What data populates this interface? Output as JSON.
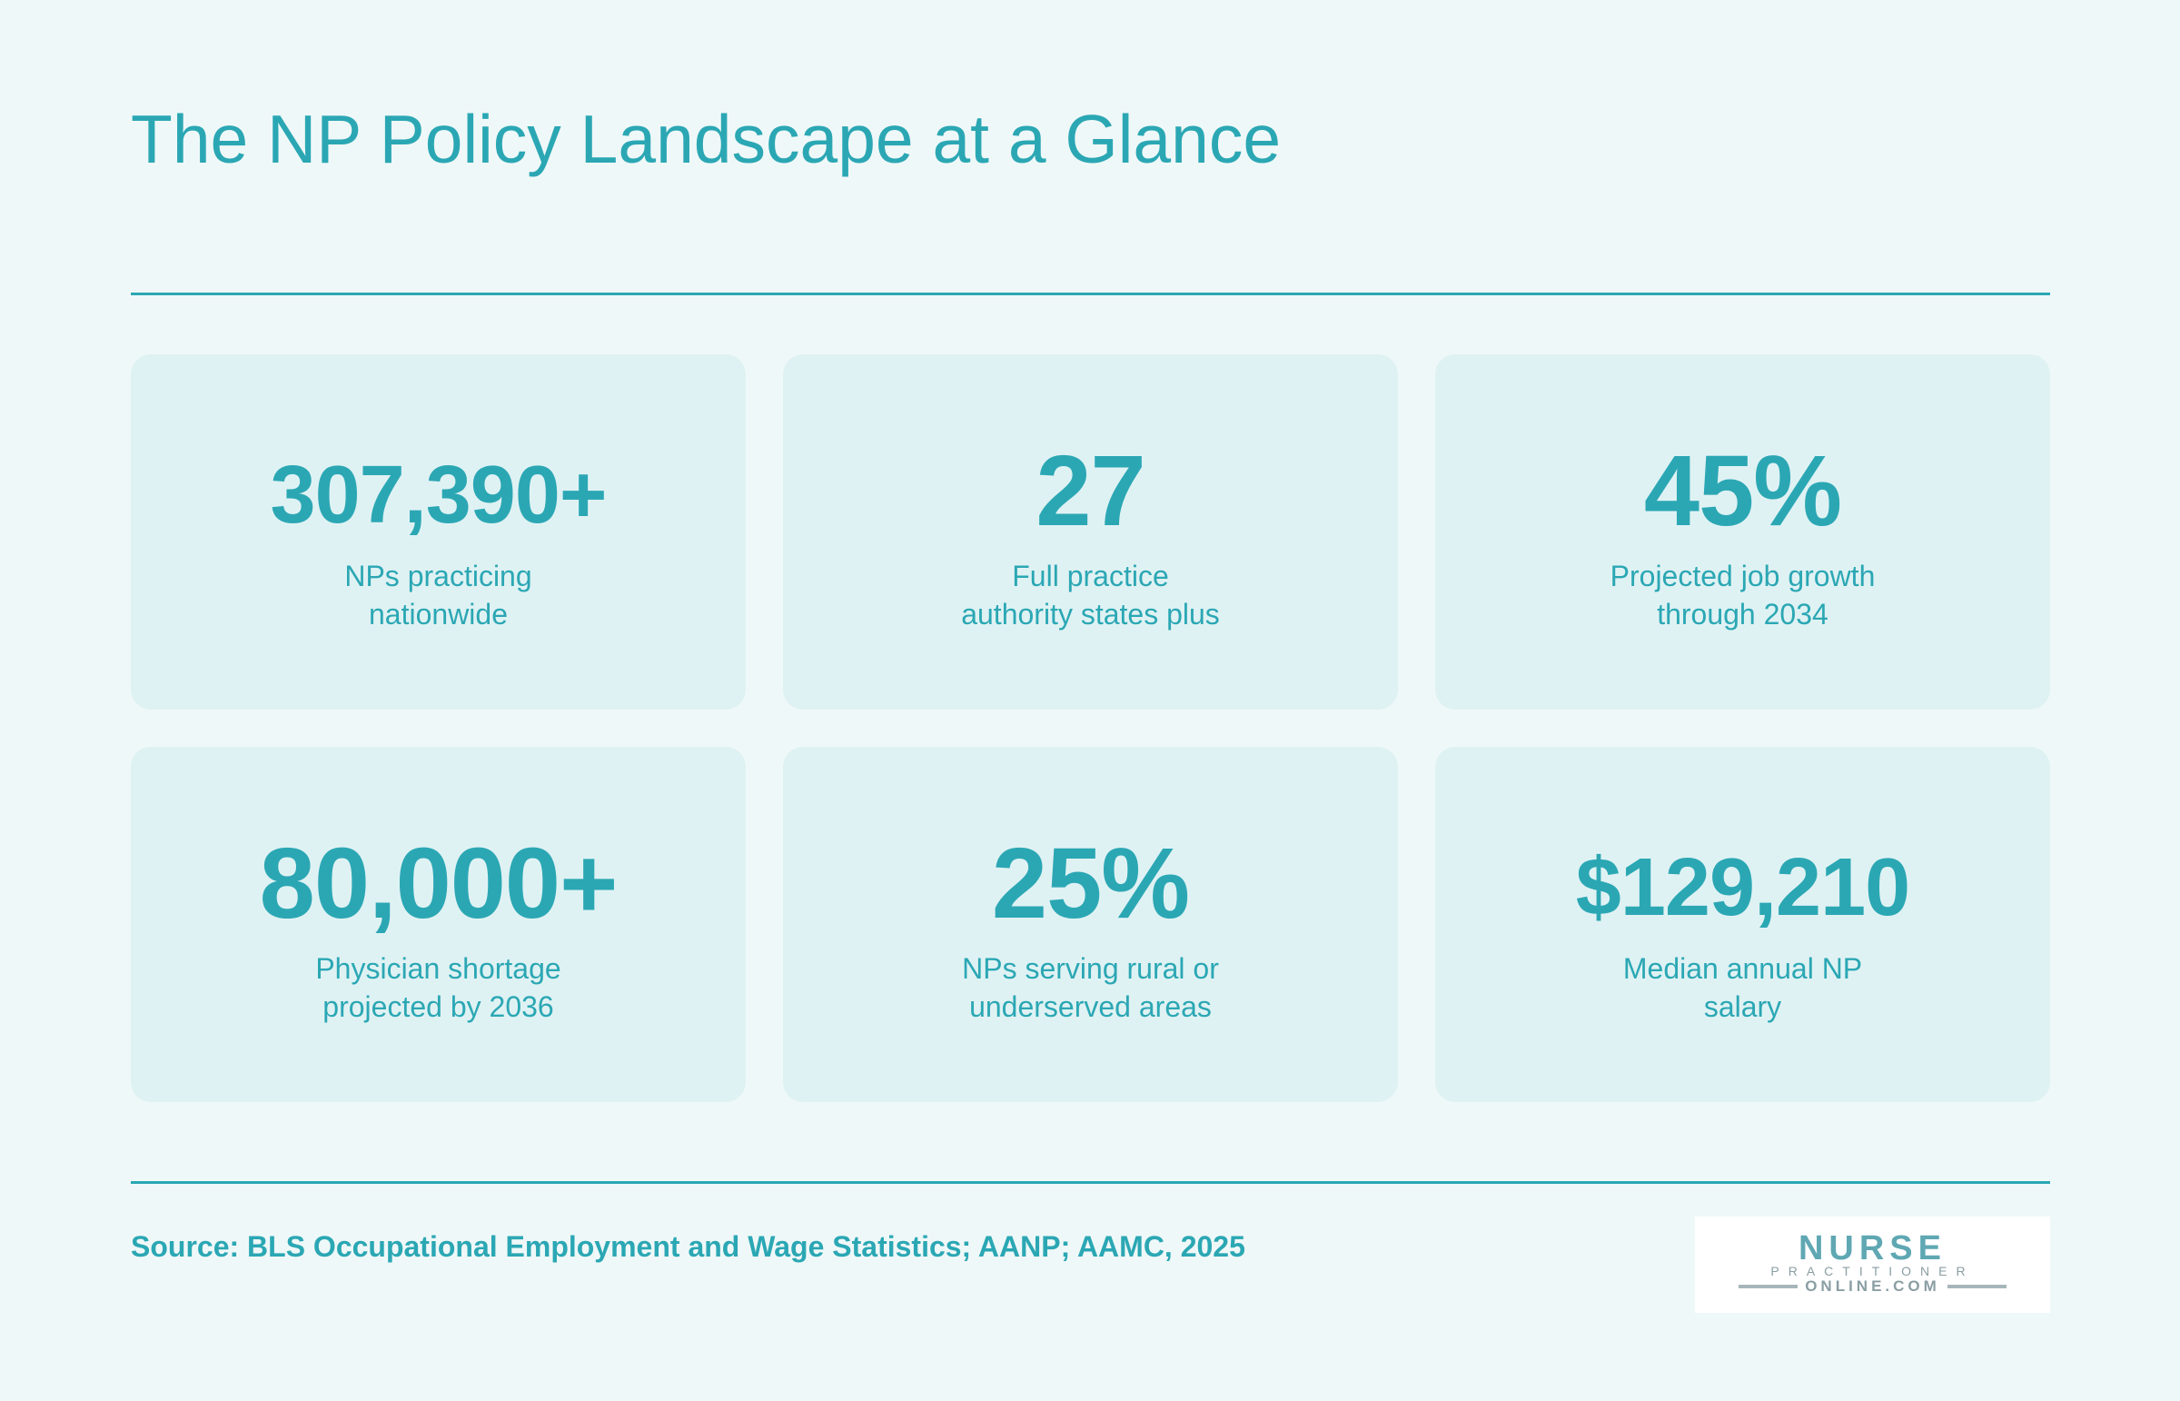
{
  "title": "The NP Policy Landscape at a Glance",
  "stats": [
    {
      "value": "307,390+",
      "label": "NPs practicing\nnationwide"
    },
    {
      "value": "27",
      "label": "Full practice\nauthority states plus"
    },
    {
      "value": "45%",
      "label": "Projected job growth\nthrough 2034"
    },
    {
      "value": "80,000+",
      "label": "Physician shortage\nprojected by 2036"
    },
    {
      "value": "25%",
      "label": "NPs serving rural or\nunderserved areas"
    },
    {
      "value": "$129,210",
      "label": "Median annual NP\nsalary"
    }
  ],
  "source": "Source: BLS Occupational Employment and Wage Statistics; AANP; AAMC, 2025",
  "logo": {
    "word": "NURSE",
    "sub": "PRACTITIONER",
    "domain": "ONLINE.COM"
  },
  "colors": {
    "accent": "#2ba7b4",
    "background": "#eff8f8",
    "card": "#dff2f3"
  }
}
